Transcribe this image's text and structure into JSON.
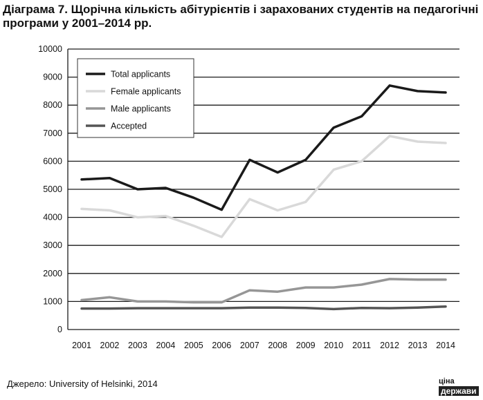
{
  "header": {
    "title": "Діаграма 7. Щорічна кількість абітурієнтів і зарахованих студентів на педагогічні програми у 2001–2014 рр."
  },
  "source": {
    "text": "Джерело: University of Helsinki, 2014"
  },
  "logo": {
    "top": "ціна",
    "bottom": "держави"
  },
  "chart_data": {
    "type": "line",
    "title": "Діаграма 7. Щорічна кількість абітурієнтів і зарахованих студентів на педагогічні програми у 2001–2014 рр.",
    "xlabel": "",
    "ylabel": "",
    "x": [
      "2001",
      "2002",
      "2003",
      "2004",
      "2005",
      "2006",
      "2007",
      "2008",
      "2009",
      "2010",
      "2011",
      "2012",
      "2013",
      "2014"
    ],
    "ylim": [
      0,
      10000
    ],
    "yticks": [
      "0",
      "1000",
      "2000",
      "3000",
      "4000",
      "5000",
      "6000",
      "7000",
      "8000",
      "9000",
      "10000"
    ],
    "grid": "horizontal",
    "legend_position": "top-left",
    "series": [
      {
        "name": "Total applicants",
        "color": "#1a1a1a",
        "width": 3.5,
        "values": [
          5350,
          5400,
          5000,
          5050,
          4700,
          4270,
          6050,
          5600,
          6050,
          7200,
          7600,
          8700,
          8500,
          8450
        ]
      },
      {
        "name": "Female applicants",
        "color": "#d9d9d9",
        "width": 3.5,
        "values": [
          4300,
          4250,
          4000,
          4050,
          3700,
          3300,
          4650,
          4250,
          4550,
          5700,
          6000,
          6900,
          6700,
          6650
        ]
      },
      {
        "name": "Male applicants",
        "color": "#969696",
        "width": 3.5,
        "values": [
          1050,
          1150,
          1000,
          1000,
          970,
          970,
          1400,
          1350,
          1500,
          1500,
          1600,
          1800,
          1780,
          1780
        ]
      },
      {
        "name": "Accepted",
        "color": "#555555",
        "width": 3.5,
        "values": [
          750,
          750,
          760,
          760,
          760,
          760,
          780,
          780,
          770,
          730,
          770,
          760,
          780,
          820
        ]
      }
    ]
  }
}
